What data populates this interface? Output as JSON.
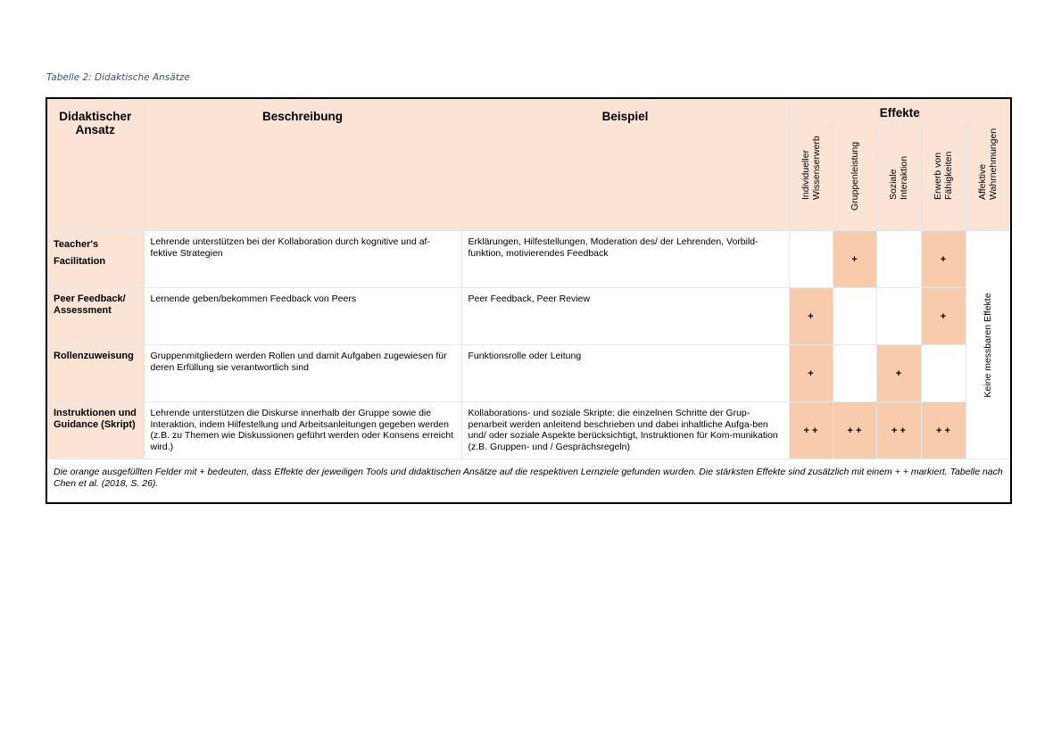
{
  "caption": "Tabelle 2: Didaktische Ansätze",
  "header": {
    "approach": "Didaktischer Ansatz",
    "description": "Beschreibung",
    "example": "Beispiel",
    "effects": "Effekte",
    "effect_columns": [
      "Individueller Wissenserwerb",
      "Gruppenleistung",
      "Soziale Interaktion",
      "Erwerb von Fähigkeiten",
      "Affektive Wahrnehmungen"
    ]
  },
  "rows": [
    {
      "approach": "Teacher's Facilitation",
      "description": "Lehrende unterstützen bei der Kollaboration durch kognitive und af-fektive Strategien",
      "example": "Erklärungen, Hilfestellungen, Moderation des/ der Lehrenden, Vorbild-funktion, motivierendes Feedback",
      "effects": [
        "",
        "+",
        "",
        "+"
      ]
    },
    {
      "approach": "Peer Feedback/ Assessment",
      "description": "Lernende geben/bekommen Feedback von Peers",
      "example": "Peer Feedback, Peer Review",
      "effects": [
        "+",
        "",
        "",
        "+"
      ]
    },
    {
      "approach": "Rollenzuweisung",
      "description": "Gruppenmitgliedern werden Rollen und damit Aufgaben zugewiesen für deren Erfüllung sie verantwortlich sind",
      "example": "Funktionsrolle oder Leitung",
      "effects": [
        "+",
        "",
        "+",
        ""
      ]
    },
    {
      "approach": "Instruktionen und Guidance (Skript)",
      "description": "Lehrende unterstützen die Diskurse innerhalb der Gruppe sowie die Interaktion, indem Hilfestellung und Arbeitsanleitungen gegeben werden (z.B. zu Themen wie Diskussionen geführt werden oder Konsens erreicht wird.)",
      "example": "Kollaborations- und soziale Skripte: die einzelnen Schritte der Grup-penarbeit werden anleitend beschrieben und dabei inhaltliche Aufga-ben und/ oder soziale Aspekte berücksichtigt, Instruktionen für Kom-munikation (z.B. Gruppen- und / Gesprächsregeln)",
      "effects": [
        "+ +",
        "+ +",
        "+ +",
        "+ +"
      ]
    }
  ],
  "affective_note": "Keine messbaren Effekte",
  "footnote": "Die orange ausgefüllten Felder mit + bedeuten, dass Effekte der jeweiligen Tools und didaktischen Ansätze auf die respektiven Lernziele gefunden wurden. Die stärksten Effekte sind zusätzlich mit einem + + markiert. Tabelle nach Chen et al. (2018, S. 26).",
  "colors": {
    "header_bg": "#fbe3d6",
    "effect_fill": "#f7cbac",
    "caption": "#44546a"
  }
}
